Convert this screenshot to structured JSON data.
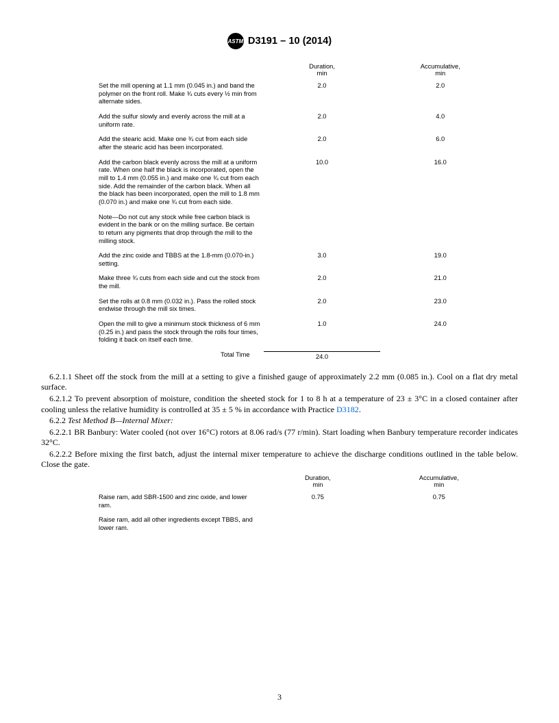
{
  "header": {
    "logo_text": "ASTM",
    "title": "D3191 – 10 (2014)"
  },
  "table1": {
    "col_duration_label": "Duration,",
    "col_duration_unit": "min",
    "col_accum_label": "Accumulative,",
    "col_accum_unit": "min",
    "rows": [
      {
        "desc": "Set the mill opening at 1.1 mm (0.045 in.) and band the polymer on the front roll. Make ¾ cuts every ½ min from alternate sides.",
        "dur": "2.0",
        "acc": "2.0"
      },
      {
        "desc": "Add the sulfur slowly and evenly across the mill at a uniform rate.",
        "dur": "2.0",
        "acc": "4.0"
      },
      {
        "desc": "Add the stearic acid. Make one ¾ cut from each side after the stearic acid has been incorporated.",
        "dur": "2.0",
        "acc": "6.0"
      },
      {
        "desc": "Add the carbon black evenly across the mill at a uniform rate. When one half the black is incorporated, open the mill to 1.4 mm (0.055 in.) and make one ¾ cut from each side. Add the remainder of the carbon black. When all the black has been incorporated, open the mill to 1.8 mm (0.070 in.) and make one ¾ cut from each side.",
        "dur": "10.0",
        "acc": "16.0"
      },
      {
        "desc": "Note—Do not cut any stock while free carbon black is evident in the bank or on the milling surface. Be certain to return any pigments that drop through the mill to the milling stock.",
        "dur": "",
        "acc": ""
      },
      {
        "desc": "Add the zinc oxide and TBBS at the 1.8-mm (0.070-in.) setting.",
        "dur": "3.0",
        "acc": "19.0"
      },
      {
        "desc": "Make three ¾ cuts from each side and cut the stock from the mill.",
        "dur": "2.0",
        "acc": "21.0"
      },
      {
        "desc": "Set the rolls at 0.8 mm (0.032 in.). Pass the rolled stock endwise through the mill six times.",
        "dur": "2.0",
        "acc": "23.0"
      },
      {
        "desc": "Open the mill to give a minimum stock thickness of 6 mm (0.25 in.) and pass the stock through the rolls four times, folding it back on itself each time.",
        "dur": "1.0",
        "acc": "24.0"
      }
    ],
    "total_label": "Total Time",
    "total_value": "24.0"
  },
  "paragraphs": {
    "p1": "6.2.1.1 Sheet off the stock from the mill at a setting to give a finished gauge of approximately 2.2 mm (0.085 in.). Cool on a flat dry metal surface.",
    "p2_a": "6.2.1.2 To prevent absorption of moisture, condition the sheeted stock for 1 to 8 h at a temperature of 23 ± 3°C in a closed container after cooling unless the relative humidity is controlled at 35 ± 5 % in accordance with Practice ",
    "p2_link": "D3182",
    "p2_b": ".",
    "p3_a": "6.2.2 ",
    "p3_i": "Test Method B—Internal Mixer:",
    "p4": "6.2.2.1 BR Banbury: Water cooled (not over 16°C) rotors at 8.06 rad/s (77 r/min). Start loading when Banbury temperature recorder indicates 32°C.",
    "p5": "6.2.2.2 Before mixing the first batch, adjust the internal mixer temperature to achieve the discharge conditions outlined in the table below. Close the gate."
  },
  "table2": {
    "col_duration_label": "Duration,",
    "col_duration_unit": "min",
    "col_accum_label": "Accumulative,",
    "col_accum_unit": "min",
    "rows": [
      {
        "desc": "Raise ram, add SBR-1500 and zinc oxide, and lower ram.",
        "dur": "0.75",
        "acc": "0.75"
      },
      {
        "desc": "Raise ram, add all other ingredients except TBBS, and lower ram.",
        "dur": "",
        "acc": ""
      }
    ]
  },
  "page_number": "3"
}
